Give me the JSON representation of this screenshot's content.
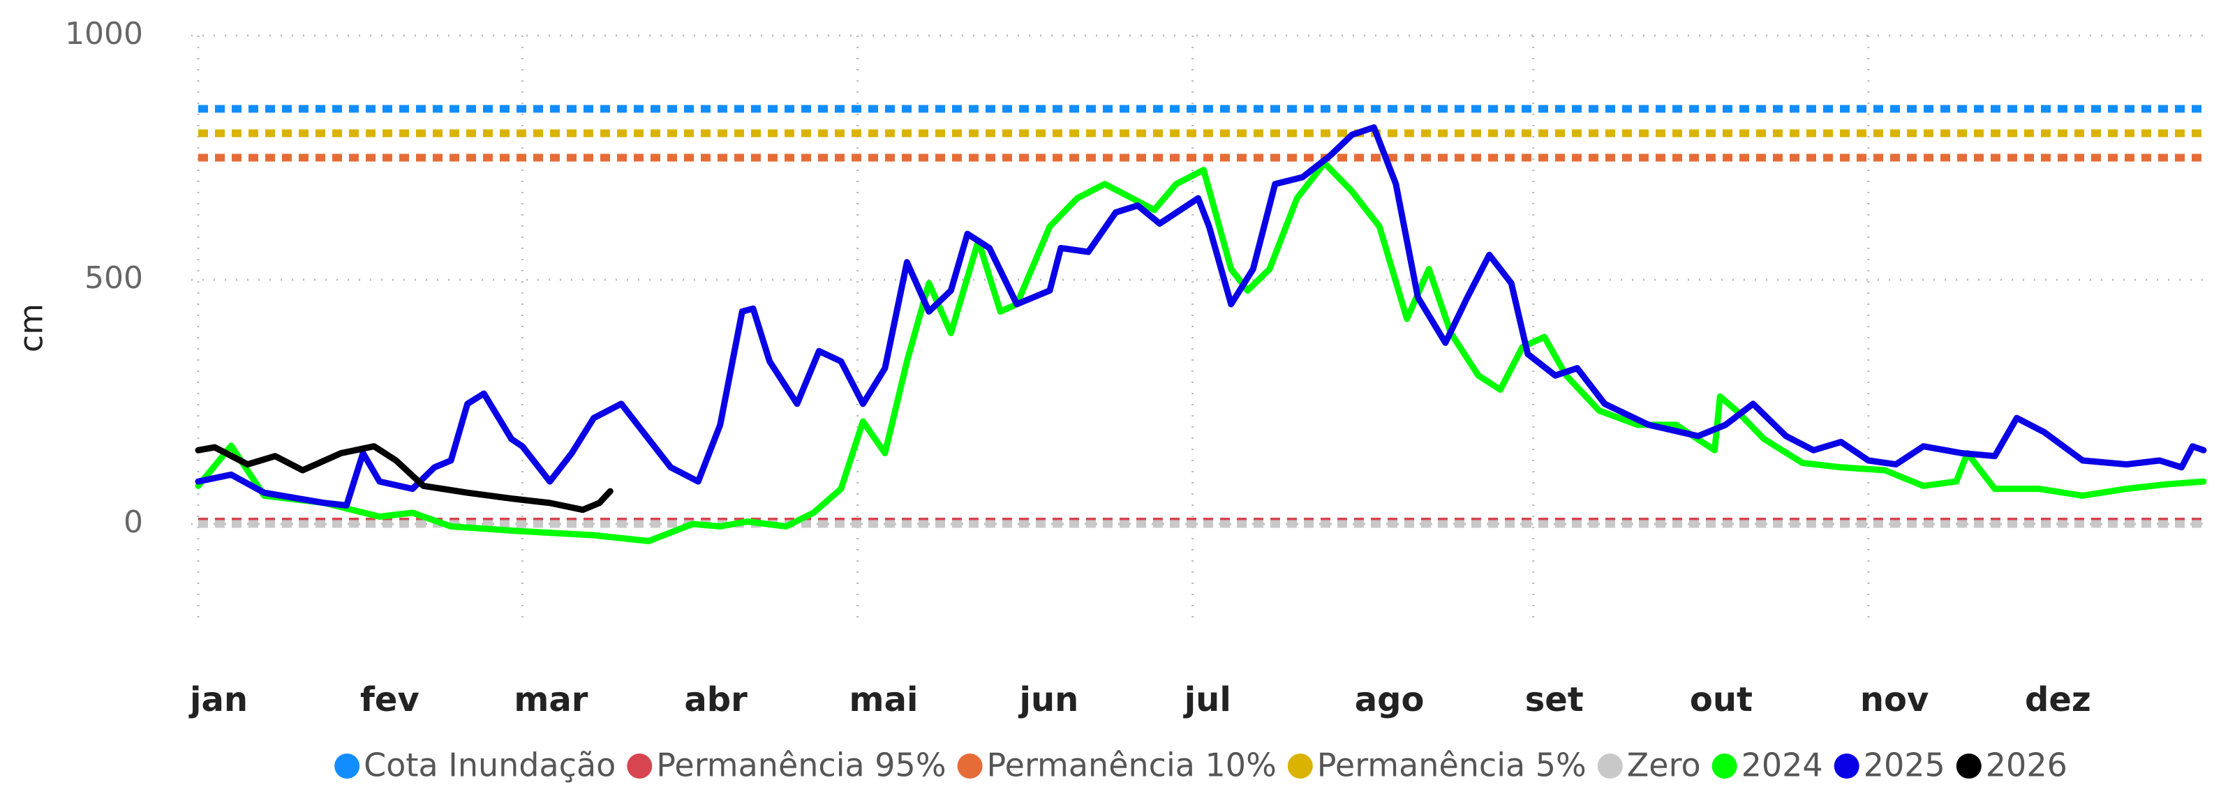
{
  "chart_data": {
    "type": "line",
    "y_label": "cm",
    "xlim": [
      0,
      365
    ],
    "xticks": [
      {
        "value": 0,
        "label": "jan"
      },
      {
        "value": 31,
        "label": "fev"
      },
      {
        "value": 59,
        "label": "mar"
      },
      {
        "value": 90,
        "label": "abr"
      },
      {
        "value": 120,
        "label": "mai"
      },
      {
        "value": 151,
        "label": "jun"
      },
      {
        "value": 181,
        "label": "jul"
      },
      {
        "value": 212,
        "label": "ago"
      },
      {
        "value": 243,
        "label": "set"
      },
      {
        "value": 273,
        "label": "out"
      },
      {
        "value": 304,
        "label": "nov"
      },
      {
        "value": 334,
        "label": "dez"
      }
    ],
    "ylim": [
      -200,
      1000
    ],
    "yticks": [
      0,
      500,
      1000
    ],
    "grid": true,
    "legend": "bottom",
    "series": [
      {
        "name": "Cota Inundação",
        "color": "#118DFF",
        "style": "dotted",
        "x": [
          0,
          365
        ],
        "values": [
          850,
          850
        ]
      },
      {
        "name": "Permanência 95%",
        "color": "#D64550",
        "style": "dotted",
        "x": [
          0,
          365
        ],
        "values": [
          5,
          5
        ]
      },
      {
        "name": "Permanência 10%",
        "color": "#E66C37",
        "style": "dotted",
        "x": [
          0,
          365
        ],
        "values": [
          750,
          750
        ]
      },
      {
        "name": "Permanência 5%",
        "color": "#D9B300",
        "style": "dotted",
        "x": [
          0,
          365
        ],
        "values": [
          800,
          800
        ]
      },
      {
        "name": "Zero",
        "color": "#C8C8C8",
        "style": "dotted",
        "x": [
          0,
          365
        ],
        "values": [
          0,
          0
        ]
      },
      {
        "name": "2024",
        "color": "#00FF00",
        "style": "solid",
        "x": [
          0,
          6,
          12,
          23,
          33,
          39,
          46,
          59,
          72,
          82,
          90,
          95,
          100,
          107,
          112,
          117,
          121,
          125,
          129,
          133,
          137,
          142,
          146,
          149,
          155,
          160,
          165,
          170,
          174,
          178,
          183,
          188,
          191,
          195,
          200,
          205,
          210,
          215,
          220,
          224,
          228,
          233,
          237,
          241,
          245,
          249,
          255,
          262,
          269,
          276,
          277,
          280,
          285,
          292,
          299,
          307,
          314,
          320,
          322,
          327,
          335,
          343,
          351,
          358,
          365
        ],
        "values": [
          78,
          160,
          58,
          43,
          15,
          23,
          -5,
          -15,
          -23,
          -35,
          0,
          -5,
          5,
          -5,
          23,
          72,
          210,
          145,
          333,
          493,
          391,
          580,
          435,
          450,
          609,
          667,
          696,
          667,
          643,
          696,
          725,
          522,
          478,
          522,
          667,
          739,
          681,
          609,
          420,
          522,
          391,
          304,
          275,
          362,
          383,
          304,
          232,
          203,
          203,
          151,
          261,
          232,
          174,
          125,
          116,
          110,
          78,
          87,
          145,
          72,
          72,
          58,
          72,
          81,
          87
        ]
      },
      {
        "name": "2025",
        "color": "#0A00E6",
        "style": "solid",
        "x": [
          0,
          6,
          12,
          23,
          27,
          30,
          33,
          39,
          43,
          46,
          49,
          52,
          57,
          59,
          64,
          68,
          72,
          77,
          81,
          86,
          91,
          95,
          99,
          101,
          104,
          109,
          113,
          117,
          121,
          125,
          129,
          133,
          137,
          140,
          144,
          149,
          155,
          157,
          162,
          167,
          171,
          175,
          182,
          184,
          188,
          192,
          196,
          201,
          206,
          210,
          214,
          218,
          222,
          227,
          231,
          235,
          239,
          242,
          247,
          251,
          256,
          264,
          273,
          278,
          283,
          289,
          294,
          299,
          304,
          309,
          314,
          321,
          327,
          331,
          336,
          343,
          351,
          357,
          361,
          363,
          365
        ],
        "values": [
          87,
          101,
          64,
          43,
          38,
          145,
          87,
          72,
          116,
          130,
          246,
          267,
          174,
          159,
          87,
          145,
          217,
          246,
          188,
          116,
          87,
          203,
          435,
          441,
          333,
          246,
          354,
          333,
          246,
          319,
          536,
          435,
          478,
          594,
          565,
          450,
          478,
          565,
          557,
          638,
          652,
          615,
          667,
          609,
          450,
          522,
          696,
          710,
          754,
          797,
          812,
          696,
          464,
          371,
          464,
          551,
          493,
          348,
          304,
          319,
          246,
          203,
          180,
          203,
          246,
          180,
          151,
          168,
          130,
          122,
          159,
          145,
          139,
          217,
          188,
          130,
          122,
          130,
          116,
          159,
          151
        ]
      },
      {
        "name": "2026",
        "color": "#000000",
        "style": "solid",
        "x": [
          0,
          3,
          9,
          14,
          19,
          26,
          32,
          36,
          41,
          49,
          57,
          64,
          70,
          73,
          75
        ],
        "values": [
          151,
          157,
          122,
          139,
          110,
          145,
          159,
          130,
          78,
          64,
          52,
          43,
          29,
          43,
          67
        ]
      }
    ]
  }
}
